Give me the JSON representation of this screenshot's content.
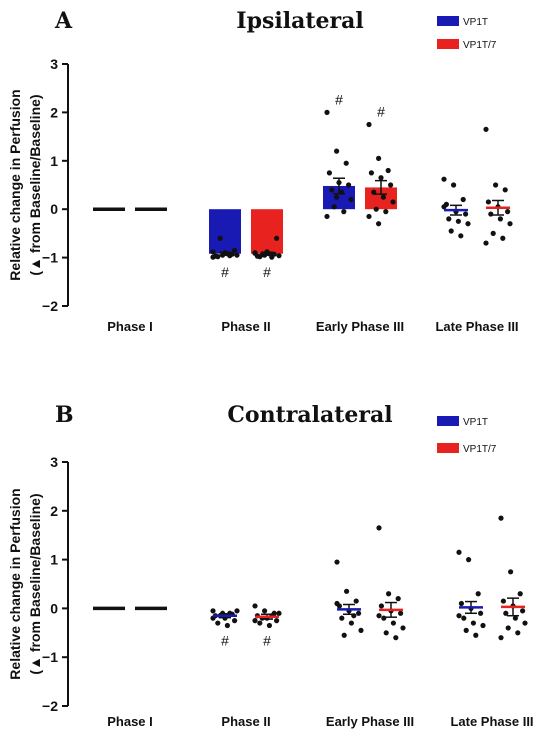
{
  "colors": {
    "vp1t": "#1919b3",
    "vp1t7": "#e8231f",
    "axis": "#111111",
    "point": "#111111"
  },
  "chart_data": [
    {
      "type": "bar",
      "panel": "A",
      "title": "Ipsilateral",
      "ylabel_line1": "Relative change in Perfusion",
      "ylabel_line2": "(▲ from Baseline/Baseline)",
      "ylim": [
        -2,
        3
      ],
      "yticks": [
        "-2",
        "-1",
        "0",
        "1",
        "2",
        "3"
      ],
      "categories": [
        "Phase I",
        "Phase II",
        "Early Phase III",
        "Late Phase III"
      ],
      "legend": [
        "VP1T",
        "VP1T/7"
      ],
      "significance_marker": "#",
      "series": [
        {
          "name": "VP1T",
          "means": [
            0,
            -0.92,
            0.48,
            -0.02
          ],
          "sem": [
            0,
            0.03,
            0.16,
            0.1
          ],
          "bars": [
            false,
            true,
            true,
            false
          ],
          "significant": [
            false,
            true,
            true,
            false
          ],
          "points": [
            [
              0,
              0,
              0,
              0,
              0,
              0,
              0,
              0,
              0,
              0,
              0,
              0
            ],
            [
              -0.88,
              -0.95,
              -0.93,
              -0.97,
              -0.9,
              -0.85,
              -0.98,
              -0.92,
              -0.95,
              -0.6,
              -0.96,
              -0.99
            ],
            [
              2.0,
              1.2,
              0.95,
              0.75,
              0.55,
              0.5,
              0.4,
              0.35,
              0.2,
              0.05,
              -0.05,
              -0.15,
              0.25
            ],
            [
              0.62,
              0.5,
              0.2,
              0.1,
              -0.05,
              -0.1,
              -0.2,
              -0.25,
              -0.3,
              -0.45,
              -0.55,
              0.05
            ]
          ]
        },
        {
          "name": "VP1T/7",
          "means": [
            0,
            -0.92,
            0.45,
            0.03
          ],
          "sem": [
            0,
            0.03,
            0.14,
            0.15
          ],
          "bars": [
            false,
            true,
            true,
            false
          ],
          "significant": [
            false,
            true,
            true,
            false
          ],
          "points": [
            [
              0,
              0,
              0,
              0,
              0,
              0,
              0,
              0,
              0,
              0,
              0,
              0
            ],
            [
              -0.9,
              -0.95,
              -0.93,
              -0.97,
              -0.88,
              -0.6,
              -0.98,
              -0.92,
              -0.96,
              -0.94,
              -0.99,
              -0.91
            ],
            [
              1.75,
              1.05,
              0.8,
              0.75,
              0.65,
              0.5,
              0.35,
              0.25,
              0.15,
              0.0,
              -0.05,
              -0.15,
              -0.3
            ],
            [
              1.65,
              0.5,
              0.4,
              0.15,
              0.05,
              -0.05,
              -0.1,
              -0.2,
              -0.3,
              -0.5,
              -0.6,
              -0.7
            ]
          ]
        }
      ]
    },
    {
      "type": "scatter",
      "panel": "B",
      "title": "Contralateral",
      "ylabel_line1": "Relative change in Perfusion",
      "ylabel_line2": "(▲ from Baseline/Baseline)",
      "ylim": [
        -2,
        3
      ],
      "yticks": [
        "-2",
        "-1",
        "0",
        "1",
        "2",
        "3"
      ],
      "categories": [
        "Phase I",
        "Phase II",
        "Early Phase III",
        "Late Phase III"
      ],
      "legend": [
        "VP1T",
        "VP1T/7"
      ],
      "significance_marker": "#",
      "series": [
        {
          "name": "VP1T",
          "means": [
            0,
            -0.15,
            -0.02,
            0.02
          ],
          "sem": [
            0,
            0.04,
            0.1,
            0.12
          ],
          "bars": [
            false,
            false,
            false,
            false
          ],
          "significant": [
            false,
            true,
            false,
            false
          ],
          "points": [
            [
              0,
              0,
              0,
              0,
              0,
              0,
              0,
              0,
              0,
              0,
              0,
              0
            ],
            [
              -0.05,
              -0.1,
              -0.12,
              -0.15,
              -0.2,
              -0.25,
              -0.3,
              -0.35,
              -0.05,
              -0.15,
              -0.1,
              -0.2
            ],
            [
              0.95,
              0.35,
              0.15,
              0.05,
              -0.05,
              -0.1,
              -0.2,
              -0.3,
              -0.45,
              -0.55,
              -0.15,
              0.1
            ],
            [
              1.15,
              1.0,
              0.3,
              0.1,
              0.0,
              -0.1,
              -0.2,
              -0.3,
              -0.35,
              -0.45,
              -0.55,
              -0.15
            ]
          ]
        },
        {
          "name": "VP1T/7",
          "means": [
            0,
            -0.17,
            -0.03,
            0.03
          ],
          "sem": [
            0,
            0.05,
            0.15,
            0.18
          ],
          "bars": [
            false,
            false,
            false,
            false
          ],
          "significant": [
            false,
            true,
            false,
            false
          ],
          "points": [
            [
              0,
              0,
              0,
              0,
              0,
              0,
              0,
              0,
              0,
              0,
              0,
              0
            ],
            [
              0.05,
              -0.05,
              -0.1,
              -0.15,
              -0.2,
              -0.25,
              -0.3,
              -0.35,
              -0.1,
              -0.2,
              -0.15,
              -0.25
            ],
            [
              1.65,
              0.3,
              0.2,
              0.05,
              -0.05,
              -0.1,
              -0.2,
              -0.3,
              -0.4,
              -0.5,
              -0.6,
              -0.15
            ],
            [
              1.85,
              0.75,
              0.3,
              0.15,
              0.05,
              -0.05,
              -0.1,
              -0.2,
              -0.3,
              -0.4,
              -0.5,
              -0.6
            ]
          ]
        }
      ]
    }
  ]
}
